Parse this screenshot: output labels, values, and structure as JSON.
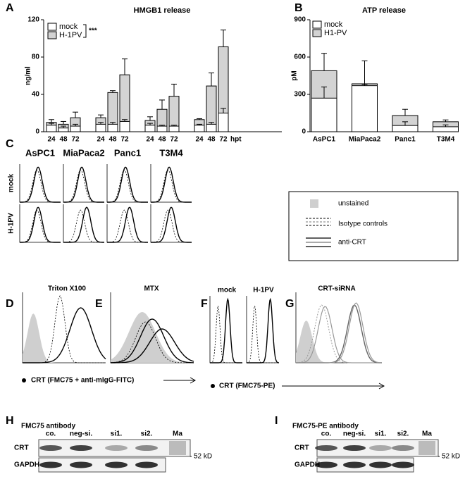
{
  "chart_data": [
    {
      "panel": "A",
      "type": "bar",
      "title": "HMGB1 release",
      "y_label": "ng/ml",
      "categories": [
        "24",
        "48",
        "72",
        "24",
        "48",
        "72",
        "24",
        "48",
        "72",
        "24",
        "48",
        "72"
      ],
      "x_unit": "hpt",
      "annotation": "***",
      "series": [
        {
          "name": "mock",
          "color": "#ffffff",
          "values": [
            7,
            4,
            6,
            8,
            8,
            11,
            7,
            6,
            6,
            7,
            8,
            20
          ],
          "errors": [
            2,
            2,
            2,
            2,
            2,
            2,
            2,
            1,
            1,
            1,
            2,
            5
          ]
        },
        {
          "name": "H-1PV",
          "color": "#d3d3d3",
          "values": [
            10,
            8,
            15,
            15,
            42,
            61,
            12,
            24,
            38,
            13,
            49,
            91
          ],
          "errors": [
            3,
            3,
            6,
            3,
            2,
            17,
            4,
            10,
            13,
            1,
            14,
            18
          ]
        }
      ],
      "ylim": [
        0,
        120
      ],
      "yticks": [
        0,
        40,
        80,
        120
      ]
    },
    {
      "panel": "B",
      "type": "bar",
      "title": "ATP release",
      "y_label": "pM",
      "categories": [
        "AsPC1",
        "MiaPaca2",
        "Panc1",
        "T3M4"
      ],
      "series": [
        {
          "name": "mock",
          "color": "#ffffff",
          "values": [
            270,
            370,
            50,
            40
          ],
          "errors": [
            90,
            10,
            30,
            15
          ]
        },
        {
          "name": "H1-PV",
          "color": "#d3d3d3",
          "values": [
            490,
            385,
            130,
            80
          ],
          "errors": [
            140,
            185,
            50,
            15
          ]
        }
      ],
      "ylim": [
        0,
        900
      ],
      "yticks": [
        0,
        300,
        600,
        900
      ]
    }
  ],
  "panel_c": {
    "label": "C",
    "columns": [
      "AsPC1",
      "MiaPaca2",
      "Panc1",
      "T3M4"
    ],
    "rows": [
      "mock",
      "H-1PV"
    ],
    "legend": [
      "unstained",
      "Isotype controls",
      "anti-CRT"
    ]
  },
  "panel_d": {
    "label": "D",
    "title": "Triton X100"
  },
  "panel_e": {
    "label": "E",
    "title": "MTX"
  },
  "axis_de": "CRT (FMC75 + anti-mIgG-FITC)",
  "panel_f": {
    "label": "F",
    "titles": [
      "mock",
      "H-1PV"
    ]
  },
  "panel_g": {
    "label": "G",
    "title": "CRT-siRNA"
  },
  "axis_fg": "CRT (FMC75-PE)",
  "panel_h": {
    "label": "H",
    "title": "FMC75 antibody",
    "lanes": [
      "co.",
      "neg-si.",
      "si1.",
      "si2.",
      "Ma"
    ],
    "rows": [
      "CRT",
      "GAPDH"
    ],
    "marker": "52 kD"
  },
  "panel_i": {
    "label": "I",
    "title": "FMC75-PE antibody",
    "lanes": [
      "co.",
      "neg-si.",
      "si1.",
      "si2.",
      "Ma"
    ],
    "rows": [
      "CRT",
      "GAPDH"
    ],
    "marker": "52 kD"
  }
}
